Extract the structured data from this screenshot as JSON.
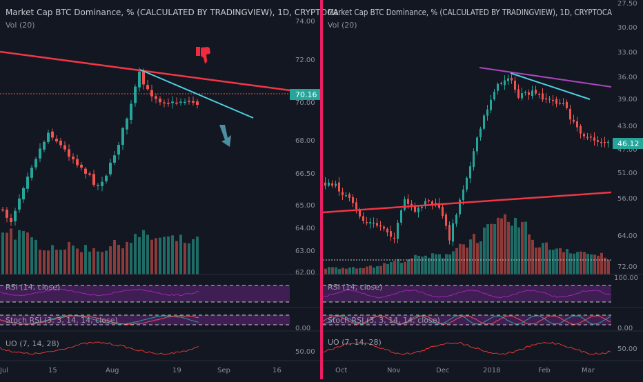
{
  "divider_color": "#e91e63",
  "colors": {
    "background": "#131722",
    "up": "#26a69a",
    "down": "#ef5350",
    "vol_up": "#1f6b66",
    "vol_down": "#8c3a3a",
    "trend_red": "#f23645",
    "trend_cyan": "#4dd0e1",
    "trend_purple": "#ab47bc",
    "rsi": "#9c27b0",
    "stoch_k": "#26a69a",
    "stoch_d": "#ef5350",
    "uo": "#e53935",
    "axis_text": "#8a8f98"
  },
  "chart_data": [
    {
      "type": "candlestick",
      "title": "Market Cap BTC Dominance, % (CALCULATED BY TRADINGVIEW), 1D, CRYPTOCA",
      "volume_label": "Vol (20)",
      "y_ticks": [
        "74.00",
        "72.00",
        "70.00",
        "68.00",
        "66.50",
        "65.00",
        "64.00",
        "63.00",
        "62.00"
      ],
      "x_ticks": [
        "Jul",
        "15",
        "Aug",
        "19",
        "Sep",
        "16"
      ],
      "last_price": "70.16",
      "annotations": [
        "thumbs-down-icon",
        "down-arrow-icon"
      ],
      "indicators": [
        {
          "name": "RSI",
          "label": "RSI (14, close)"
        },
        {
          "name": "Stoch RSI",
          "label": "Stoch RSI (3, 3, 14, 14, close)",
          "y_ticks": [
            "0.00"
          ]
        },
        {
          "name": "UO",
          "label": "UO (7, 14, 28)",
          "y_ticks": [
            "50.00"
          ]
        }
      ]
    },
    {
      "type": "candlestick",
      "title": "Market Cap BTC Dominance, % (CALCULATED BY TRADINGVIEW), 1D, CRYPTOCA",
      "volume_label": "Vol (20)",
      "y_ticks": [
        "27.50",
        "30.00",
        "33.00",
        "36.00",
        "39.00",
        "43.00",
        "47.00",
        "51.00",
        "56.00",
        "64.00",
        "72.00"
      ],
      "x_ticks": [
        "Oct",
        "Nov",
        "Dec",
        "2018",
        "Feb",
        "Mar"
      ],
      "last_price": "46.12",
      "indicators": [
        {
          "name": "RSI",
          "label": "RSI (14, close)",
          "y_ticks": [
            "100.00"
          ]
        },
        {
          "name": "Stoch RSI",
          "label": "Stoch RSI (3, 3, 14, 14, close)",
          "y_ticks": [
            "0.00"
          ]
        },
        {
          "name": "UO",
          "label": "UO (7, 14, 28)",
          "y_ticks": [
            "50.00"
          ]
        }
      ]
    }
  ]
}
